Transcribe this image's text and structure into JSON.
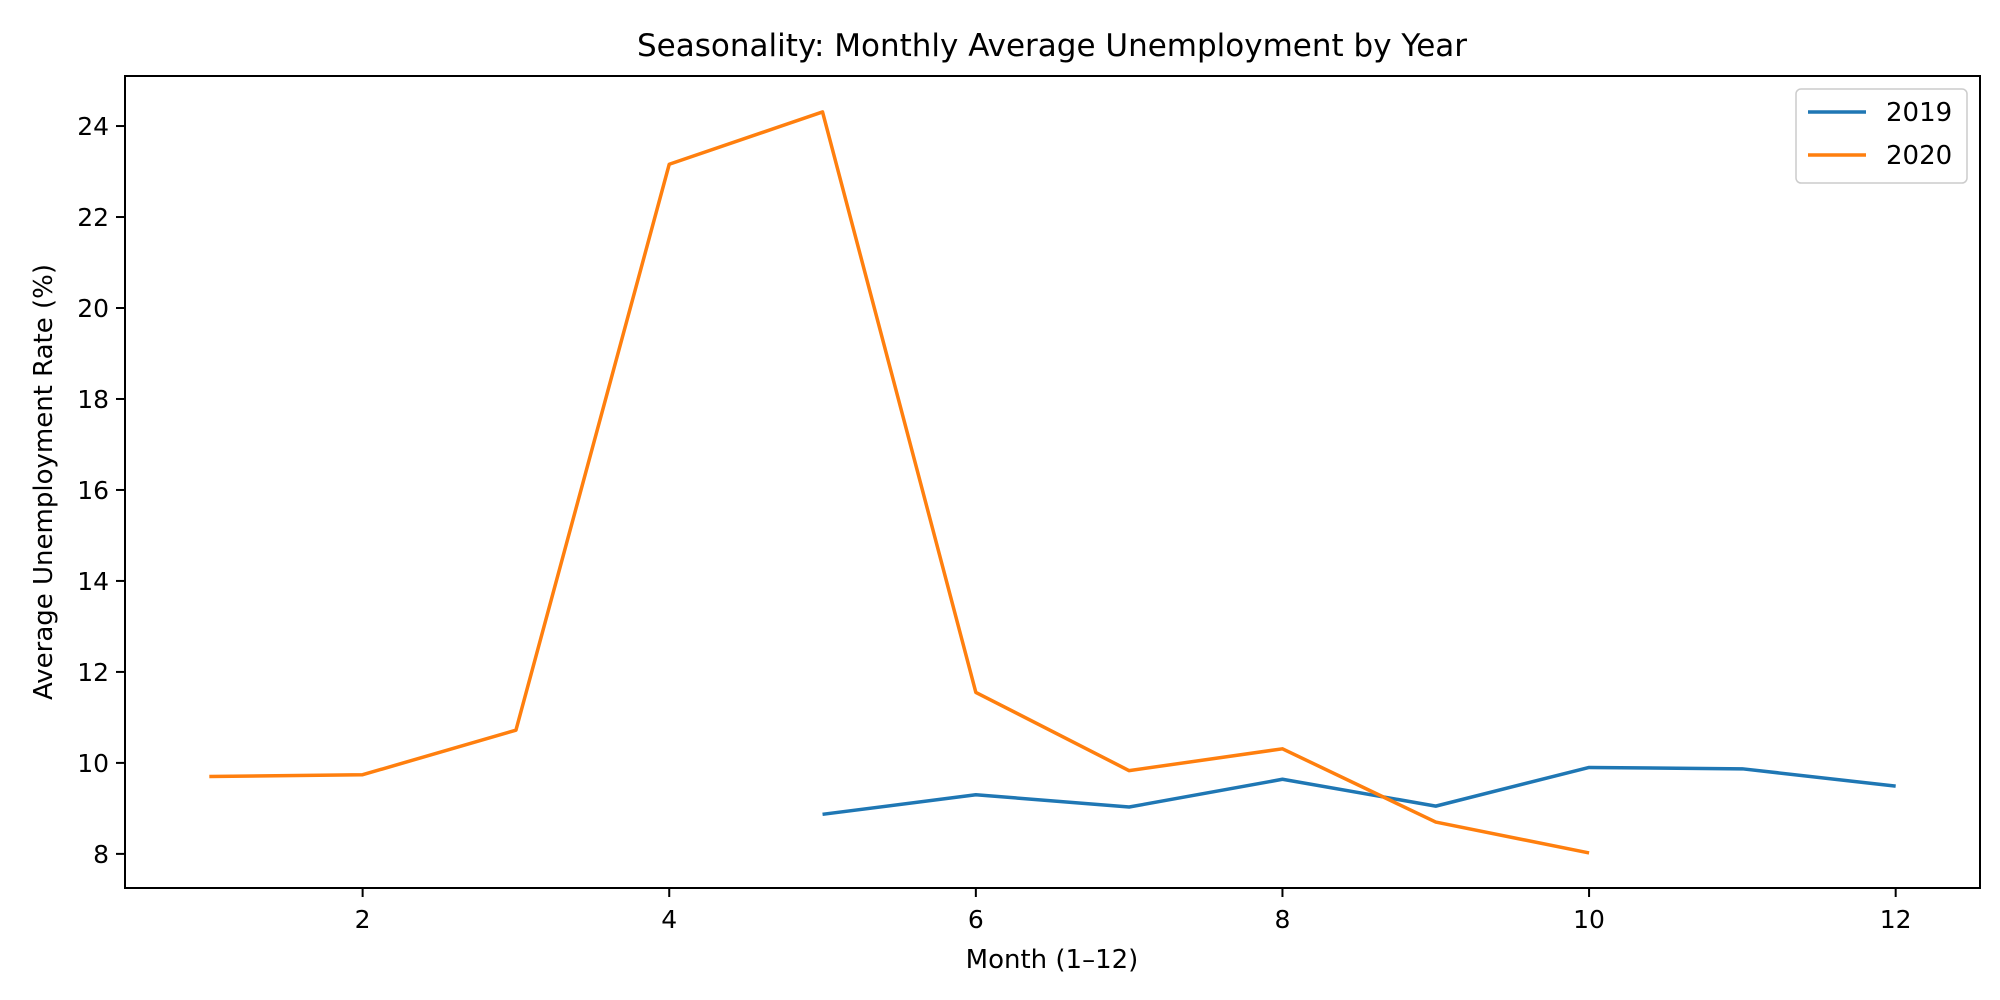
{
  "chart_data": {
    "type": "line",
    "title": "Seasonality: Monthly Average Unemployment by Year",
    "xlabel": "Month (1–12)",
    "ylabel": "Average Unemployment Rate (%)",
    "xlim": [
      0.45,
      12.55
    ],
    "ylim": [
      7.25,
      25.1
    ],
    "xticks": [
      2,
      4,
      6,
      8,
      10,
      12
    ],
    "yticks": [
      8,
      10,
      12,
      14,
      16,
      18,
      20,
      22,
      24
    ],
    "grid": false,
    "legend_position": "top-right",
    "series": [
      {
        "name": "2019",
        "color": "#1f77b4",
        "x": [
          5,
          6,
          7,
          8,
          9,
          10,
          11,
          12
        ],
        "y": [
          8.87,
          9.3,
          9.03,
          9.64,
          9.05,
          9.9,
          9.87,
          9.49
        ]
      },
      {
        "name": "2020",
        "color": "#ff7f0e",
        "x": [
          1,
          2,
          3,
          4,
          5,
          6,
          7,
          8,
          9,
          10
        ],
        "y": [
          9.7,
          9.74,
          10.72,
          23.16,
          24.31,
          11.55,
          9.83,
          10.31,
          8.7,
          8.02
        ]
      }
    ]
  }
}
